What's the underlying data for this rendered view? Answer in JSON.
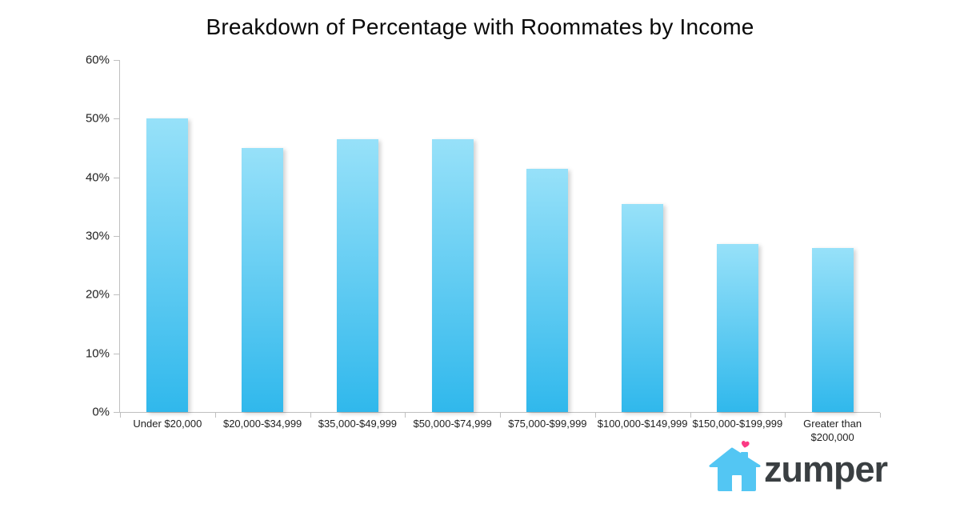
{
  "chart_data": {
    "type": "bar",
    "title": "Breakdown of Percentage with Roommates by Income",
    "categories": [
      "Under $20,000",
      "$20,000-$34,999",
      "$35,000-$49,999",
      "$50,000-$74,999",
      "$75,000-$99,999",
      "$100,000-$149,999",
      "$150,000-$199,999",
      "Greater than $200,000"
    ],
    "values": [
      50,
      45,
      46.5,
      46.5,
      41.5,
      35.5,
      28.7,
      28
    ],
    "xlabel": "",
    "ylabel": "",
    "ylim": [
      0,
      60
    ],
    "ytick_step": 10,
    "ytick_labels": [
      "0%",
      "10%",
      "20%",
      "30%",
      "40%",
      "50%",
      "60%"
    ],
    "grid": false,
    "legend": "none",
    "bar_color_top": "#97E1F9",
    "bar_color_bottom": "#30B8EC"
  },
  "branding": {
    "logo_text": "zumper",
    "house_color": "#53C6F3",
    "heart_color": "#FB3A84",
    "wordmark_color": "#3A3F42"
  },
  "colors": {
    "axis": "#BFBFBF",
    "label": "#1F1F1F",
    "background": "#FFFFFF"
  }
}
